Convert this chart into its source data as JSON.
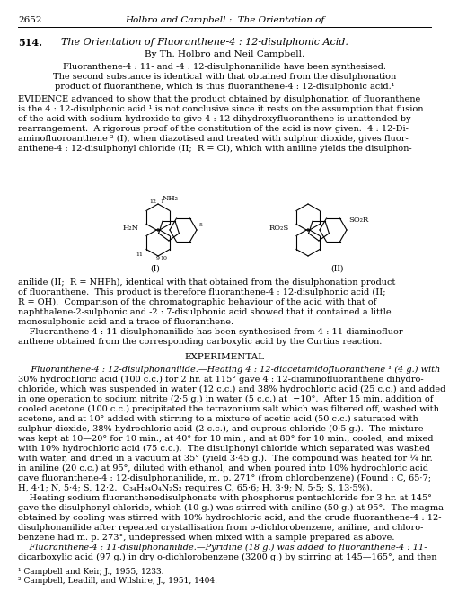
{
  "title_line": "2652          Holbro and Campbell :  The Orientation of",
  "section_number": "514.",
  "section_title": "The Orientation of Fluoranthene-4 : 12-disulphonic Acid.",
  "authors": "By Th. Holbro and Neil Campbell.",
  "abstract": "Fluoranthene-4 : 11- and -4 : 12-disulphonanilide have been synthesised.\nThe second substance is identical with that obtained from the disulphonation\nproduct of fluoranthene, which is thus fluoranthene-4 : 12-disulphonic acid.¹",
  "body_paragraphs": [
    "EVIDENCE advanced to show that the product obtained by disulphonation of fluoranthene\nis the 4 : 12-disulphonic acid ¹ is not conclusive since it rests on the assumption that fusion\nof the acid with sodium hydroxide to give 4 : 12-dihydroxyfluoranthene is unattended by\nrearrangement.  A rigorous proof of the constitution of the acid is now given.  4 : 12-Di-\naminofluoroanthene ² (I), when diazotised and treated with sulphur dioxide, gives fluor-\nanthene-4 : 12-disulphonyl chloride (II;  R = Cl), which with aniline yields the disulphon-",
    "anilide (II;  R = NHPh), identical with that obtained from the disulphonation product\nof fluoranthene.  This product is therefore fluoranthene-4 : 12-disulphonic acid (II;\nR = OH).  Comparison of the chromatographic behaviour of the acid with that of\nnaphthalene-2-sulphonic and -2 : 7-disulphonic acid showed that it contained a little\nmonosulphonic acid and a trace of fluoranthene.\n    Fluoranthene-4 : 11-disulphonanilide has been synthesised from 4 : 11-diaminofluor-\nanthene obtained from the corresponding carboxylic acid by the Curtius reaction.",
    "EXPERIMENTAL",
    "    Fluoranthene-4 : 12-disulphonanilide.—Heating 4 : 12-diacetamidofluoranthene ¹ (4 g.) with\n30% hydrochloric acid (100 c.c.) for 2 hr. at 115° gave 4 : 12-diaminofluoranthene dihydro-\nchloride, which was suspended in water (12 c.c.) and 38% hydrochloric acid (25 c.c.) and added\nin one operation to sodium nitrite (2·5 g.) in water (5 c.c.) at  -10°.  After 15 min. addition of\ncooled acetone (100 c.c.) precipitated the tetrazonium salt which was filtered off, washed with\nacetone, and at 10° added with stirring to a mixture of acetic acid (50 c.c.) saturated with\nsulphur dioxide, 38% hydrochloric acid (2 c.c.), and cuprous chloride (0·5 g.).  The mixture\nwas kept at 10—20° for 10 min., at 40° for 10 min., and at 80° for 10 min., cooled, and mixed\nwith 10% hydrochloric acid (75 c.c.).  The disulphonyl chloride which separated was washed\nwith water, and dried in a vacuum at 35° (yield 3·45 g.).  The compound was heated for ¼ hr.\nin aniline (20 c.c.) at 95°, diluted with ethanol, and when poured into 10% hydrochloric acid\ngave fluoranthene-4 : 12-disulphonanilide, m. p. 271° (from chlorobenzene) (Found : C, 65·7;\nH, 4·1; N, 5·4; S, 12·2.  C₃₄H₂₄O₄N₂S₂ requires C, 65·6; H, 3·9; N, 5·5; S, 13·5%).\n    Heating sodium fluoranthenedisulphonate with phosphorus pentachloride for 3 hr. at 145°\ngave the disulphonyl chloride, which (10 g.) was stirred with aniline (50 g.) at 95°.  The magma\nobtained by cooling was stirred with 10% hydrochloric acid, and the crude fluoranthene-4 : 12-\ndisulphonanilide after repeated crystallisation from o-dichlorobenzene, aniline, and chloro-\nbenzene had m. p. 273°, undepressed when mixed with a sample prepared as above.\n    Fluoranthene-4 : 11-disulphonanilide.—Pyridine (18 g.) was added to fluoranthene-4 : 11-\ndicarboxylic acid (97 g.) in dry o-dichlorobenzene (3200 g.) by stirring at 145—165°, and then"
  ],
  "footnotes": [
    "¹ Campbell and Keir, J., 1955, 1233.",
    "² Campbell, Leadill, and Wilshire, J., 1951, 1404."
  ],
  "bg_color": "#ffffff",
  "text_color": "#000000"
}
